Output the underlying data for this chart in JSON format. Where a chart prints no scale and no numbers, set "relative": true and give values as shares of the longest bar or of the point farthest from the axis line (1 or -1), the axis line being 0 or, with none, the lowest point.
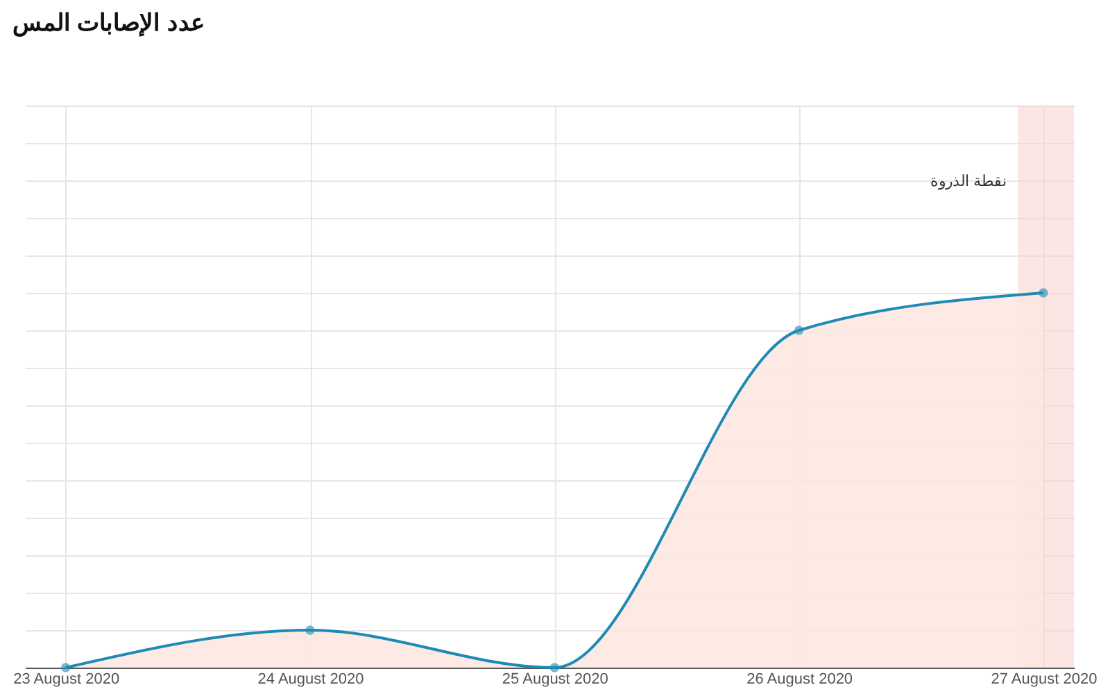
{
  "chart_data": {
    "type": "area",
    "title": "عدد الإصابات المس",
    "relative": true,
    "x": [
      "2020-08-23",
      "2020-08-24",
      "2020-08-25",
      "2020-08-26",
      "2020-08-27"
    ],
    "xlim": [
      "2020-08-22T20:00",
      "2020-08-27T03:00"
    ],
    "xticks": [
      {
        "value": "2020-08-23",
        "label": "23 August 2020"
      },
      {
        "value": "2020-08-24",
        "label": "24 August 2020"
      },
      {
        "value": "2020-08-25",
        "label": "25 August 2020"
      },
      {
        "value": "2020-08-26",
        "label": "26 August 2020"
      },
      {
        "value": "2020-08-27",
        "label": "27 August 2020"
      }
    ],
    "series": [
      {
        "color": "#1f8ab5",
        "values": [
          0,
          0.1,
          0,
          0.9,
          1
        ]
      }
    ],
    "bands": [
      {
        "axis": "x",
        "from": "2020-08-26T21:30",
        "to": "2020-08-27T03:00",
        "label": "نقطة الذروة",
        "color": "#f9d6d0"
      }
    ],
    "grid": true,
    "marker": "circle"
  }
}
